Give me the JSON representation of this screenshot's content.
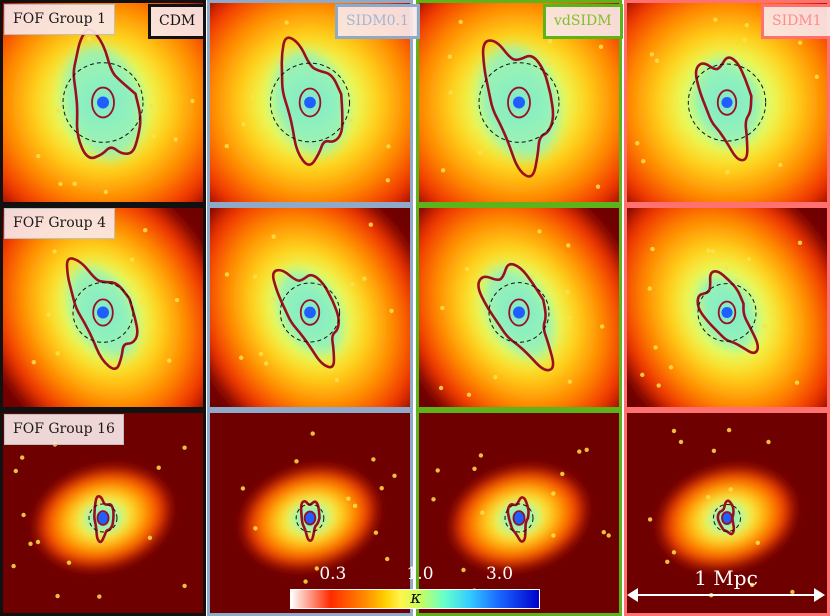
{
  "columns": [
    {
      "key": "cdm",
      "label": "CDM",
      "frame_color": "#111111",
      "label_color": "#111111"
    },
    {
      "key": "sidm01",
      "label": "SIDM0.1",
      "frame_color": "#8eaac8",
      "label_color": "#9fb6d6"
    },
    {
      "key": "vdsidm",
      "label": "vdSIDM",
      "frame_color": "#5fb31a",
      "label_color": "#7cc22a"
    },
    {
      "key": "sidm1",
      "label": "SIDM1",
      "frame_color": "#ff7070",
      "label_color": "#ff8c8c"
    }
  ],
  "rows": [
    {
      "key": "g1",
      "label": "FOF Group 1"
    },
    {
      "key": "g4",
      "label": "FOF Group 4"
    },
    {
      "key": "g16",
      "label": "FOF Group 16"
    }
  ],
  "colorbar": {
    "symbol": "κ",
    "ticks": [
      {
        "label": "0.3",
        "value": 0.3
      },
      {
        "label": "1.0",
        "value": 1.0
      },
      {
        "label": "3.0",
        "value": 3.0
      }
    ],
    "colors": [
      "#ffffff",
      "#ff2a00",
      "#ff8c00",
      "#ffd000",
      "#fff44d",
      "#c8ff5c",
      "#66ffcc",
      "#33ccff",
      "#1a66ff",
      "#0000cc"
    ]
  },
  "scalebar": {
    "label": "1 Mpc"
  },
  "map_colors": {
    "background": "#6e0000",
    "contour": "#9a1020",
    "circle": "#111111"
  }
}
